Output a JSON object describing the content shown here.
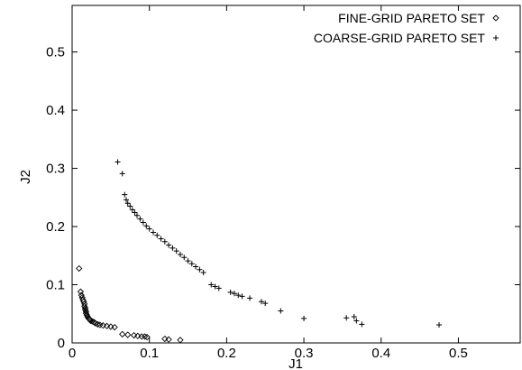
{
  "chart_data": {
    "type": "scatter",
    "title": "",
    "xlabel": "J1",
    "ylabel": "J2",
    "xlim": [
      0,
      0.58
    ],
    "ylim": [
      0,
      0.58
    ],
    "xticks": [
      "0",
      "0.1",
      "0.2",
      "0.3",
      "0.4",
      "0.5"
    ],
    "yticks": [
      "0",
      "0.1",
      "0.2",
      "0.3",
      "0.4",
      "0.5"
    ],
    "grid": false,
    "legend_position": "top-right",
    "series": [
      {
        "name": "FINE-GRID PARETO SET",
        "marker": "diamond",
        "points": [
          [
            0.009,
            0.128
          ],
          [
            0.011,
            0.088
          ],
          [
            0.012,
            0.082
          ],
          [
            0.013,
            0.078
          ],
          [
            0.014,
            0.074
          ],
          [
            0.015,
            0.071
          ],
          [
            0.016,
            0.067
          ],
          [
            0.016,
            0.063
          ],
          [
            0.017,
            0.06
          ],
          [
            0.017,
            0.057
          ],
          [
            0.018,
            0.054
          ],
          [
            0.018,
            0.051
          ],
          [
            0.019,
            0.048
          ],
          [
            0.02,
            0.045
          ],
          [
            0.021,
            0.043
          ],
          [
            0.022,
            0.041
          ],
          [
            0.023,
            0.04
          ],
          [
            0.024,
            0.038
          ],
          [
            0.026,
            0.037
          ],
          [
            0.028,
            0.036
          ],
          [
            0.03,
            0.034
          ],
          [
            0.033,
            0.032
          ],
          [
            0.036,
            0.031
          ],
          [
            0.04,
            0.03
          ],
          [
            0.045,
            0.029
          ],
          [
            0.05,
            0.028
          ],
          [
            0.055,
            0.027
          ],
          [
            0.065,
            0.015
          ],
          [
            0.072,
            0.014
          ],
          [
            0.08,
            0.013
          ],
          [
            0.085,
            0.012
          ],
          [
            0.09,
            0.011
          ],
          [
            0.094,
            0.011
          ],
          [
            0.097,
            0.01
          ],
          [
            0.12,
            0.007
          ],
          [
            0.125,
            0.006
          ],
          [
            0.14,
            0.005
          ]
        ]
      },
      {
        "name": "COARSE-GRID PARETO SET",
        "marker": "plus",
        "points": [
          [
            0.059,
            0.311
          ],
          [
            0.065,
            0.291
          ],
          [
            0.068,
            0.255
          ],
          [
            0.07,
            0.246
          ],
          [
            0.072,
            0.24
          ],
          [
            0.075,
            0.235
          ],
          [
            0.078,
            0.229
          ],
          [
            0.081,
            0.224
          ],
          [
            0.084,
            0.219
          ],
          [
            0.088,
            0.213
          ],
          [
            0.092,
            0.207
          ],
          [
            0.096,
            0.201
          ],
          [
            0.1,
            0.196
          ],
          [
            0.105,
            0.19
          ],
          [
            0.11,
            0.185
          ],
          [
            0.115,
            0.179
          ],
          [
            0.12,
            0.174
          ],
          [
            0.125,
            0.168
          ],
          [
            0.13,
            0.163
          ],
          [
            0.135,
            0.158
          ],
          [
            0.14,
            0.152
          ],
          [
            0.145,
            0.147
          ],
          [
            0.15,
            0.141
          ],
          [
            0.155,
            0.136
          ],
          [
            0.16,
            0.131
          ],
          [
            0.165,
            0.126
          ],
          [
            0.17,
            0.121
          ],
          [
            0.18,
            0.1
          ],
          [
            0.185,
            0.097
          ],
          [
            0.19,
            0.094
          ],
          [
            0.205,
            0.087
          ],
          [
            0.21,
            0.085
          ],
          [
            0.215,
            0.082
          ],
          [
            0.22,
            0.08
          ],
          [
            0.23,
            0.077
          ],
          [
            0.245,
            0.071
          ],
          [
            0.25,
            0.068
          ],
          [
            0.27,
            0.055
          ],
          [
            0.3,
            0.042
          ],
          [
            0.355,
            0.043
          ],
          [
            0.365,
            0.045
          ],
          [
            0.368,
            0.038
          ],
          [
            0.375,
            0.032
          ],
          [
            0.475,
            0.031
          ]
        ]
      }
    ]
  }
}
